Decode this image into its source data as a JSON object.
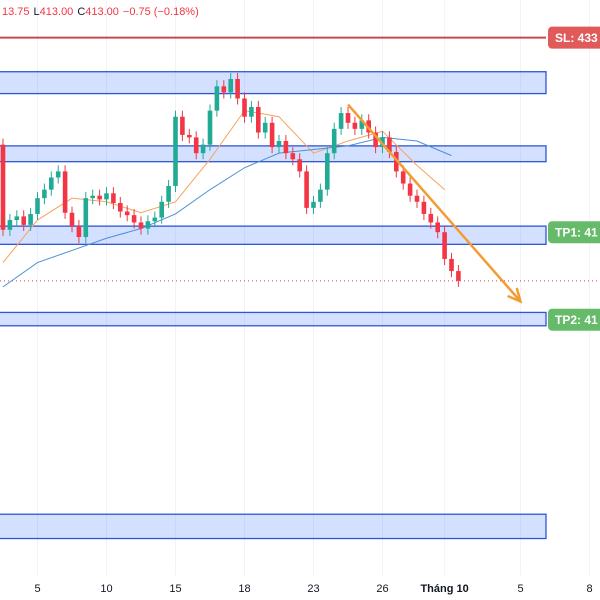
{
  "chart_data": {
    "type": "candlestick",
    "header": [
      {
        "text": "13.75",
        "color": "#f23645"
      },
      {
        "text": "L",
        "color": "#131722"
      },
      {
        "text": "413.00",
        "color": "#f23645"
      },
      {
        "text": "C",
        "color": "#131722"
      },
      {
        "text": "413.00",
        "color": "#f23645"
      },
      {
        "text": "−0.75 (−0.18%)",
        "color": "#f23645"
      }
    ],
    "categories": [
      null,
      null,
      null,
      null,
      null,
      "5",
      null,
      null,
      null,
      null,
      null,
      null,
      null,
      null,
      null,
      "10",
      null,
      null,
      null,
      null,
      null,
      null,
      null,
      null,
      null,
      "15",
      null,
      null,
      null,
      null,
      null,
      null,
      null,
      null,
      null,
      "18",
      null,
      null,
      null,
      null,
      null,
      null,
      null,
      null,
      null,
      "23",
      null,
      null,
      null,
      null,
      null,
      null,
      null,
      null,
      null,
      "26",
      null,
      null,
      null,
      null,
      null,
      null,
      null,
      null,
      "Tháng 10",
      null,
      null,
      null,
      null,
      null,
      null,
      null,
      null,
      null,
      null,
      "5",
      null,
      null,
      null,
      null,
      null,
      null,
      null,
      null,
      null,
      "8"
    ],
    "open": [
      424.2,
      417.2,
      418.0,
      418.3,
      417.6,
      418.5,
      419.8,
      420.5,
      421.5,
      422.0,
      418.6,
      417.5,
      416.6,
      419.8,
      420.0,
      419.7,
      420.2,
      419.4,
      418.7,
      418.4,
      417.8,
      417.3,
      417.9,
      418.2,
      419.5,
      420.8,
      426.5,
      425.0,
      424.8,
      423.5,
      424.2,
      427.0,
      429.0,
      428.5,
      429.6,
      428.0,
      426.5,
      427.3,
      425.2,
      426.0,
      424.0,
      424.5,
      423.5,
      423.0,
      422.0,
      419.0,
      419.5,
      420.5,
      423.5,
      425.5,
      426.8,
      426.0,
      425.5,
      426.2,
      425.2,
      424.0,
      424.8,
      423.6,
      422.0,
      421.0,
      420.0,
      419.5,
      418.5,
      417.8,
      417.0,
      414.8,
      413.8,
      null,
      null,
      null,
      null,
      null,
      null,
      null,
      null,
      null,
      null,
      null,
      null,
      null,
      null,
      null,
      null,
      null,
      null,
      null
    ],
    "high": [
      424.7,
      418.5,
      418.8,
      418.8,
      419.0,
      420.3,
      421.0,
      422.0,
      422.5,
      422.5,
      419.1,
      418.0,
      420.3,
      420.5,
      420.5,
      420.7,
      420.7,
      419.9,
      419.2,
      418.9,
      418.3,
      418.4,
      418.7,
      420.0,
      421.3,
      427.0,
      427.0,
      425.5,
      425.3,
      424.7,
      427.5,
      429.5,
      429.5,
      430.1,
      430.1,
      428.5,
      427.8,
      427.8,
      426.5,
      426.5,
      425.0,
      425.0,
      424.0,
      423.5,
      422.5,
      420.0,
      421.0,
      424.0,
      426.0,
      427.3,
      427.3,
      426.5,
      426.7,
      426.7,
      425.7,
      425.3,
      425.3,
      424.1,
      422.5,
      421.5,
      420.5,
      420.0,
      419.0,
      418.3,
      417.5,
      415.3,
      414.3,
      null,
      null,
      null,
      null,
      null,
      null,
      null,
      null,
      null,
      null,
      null,
      null,
      null,
      null,
      null,
      null,
      null,
      null,
      null
    ],
    "low": [
      416.7,
      416.7,
      417.5,
      417.1,
      417.1,
      418.0,
      419.3,
      420.0,
      421.0,
      418.1,
      417.0,
      416.1,
      416.1,
      419.3,
      419.2,
      419.2,
      418.9,
      418.2,
      417.9,
      417.3,
      416.8,
      416.8,
      417.4,
      417.7,
      419.0,
      420.3,
      424.5,
      424.3,
      423.0,
      423.0,
      423.7,
      426.5,
      428.0,
      428.0,
      427.5,
      426.0,
      426.0,
      424.7,
      424.7,
      423.5,
      423.5,
      423.0,
      422.5,
      421.5,
      418.5,
      418.5,
      419.0,
      420.0,
      423.0,
      425.0,
      425.5,
      425.0,
      425.0,
      424.7,
      423.5,
      423.5,
      423.1,
      421.5,
      420.5,
      419.5,
      419.0,
      418.0,
      417.3,
      416.5,
      414.3,
      413.3,
      412.5,
      null,
      null,
      null,
      null,
      null,
      null,
      null,
      null,
      null,
      null,
      null,
      null,
      null,
      null,
      null,
      null,
      null,
      null,
      null
    ],
    "close": [
      417.2,
      418.0,
      418.3,
      417.6,
      418.5,
      419.8,
      420.5,
      421.5,
      422.0,
      418.6,
      417.5,
      416.6,
      419.8,
      420.0,
      419.7,
      420.2,
      419.4,
      418.7,
      418.4,
      417.8,
      417.3,
      417.9,
      418.2,
      419.5,
      420.8,
      426.5,
      425.0,
      424.8,
      423.5,
      424.2,
      427.0,
      429.0,
      428.5,
      429.6,
      428.0,
      426.5,
      427.3,
      425.2,
      426.0,
      424.0,
      424.5,
      423.5,
      423.0,
      422.0,
      419.0,
      419.5,
      420.5,
      423.5,
      425.5,
      426.8,
      426.0,
      425.5,
      426.2,
      425.2,
      424.0,
      424.8,
      423.6,
      422.0,
      421.0,
      420.0,
      419.5,
      418.5,
      417.8,
      417.0,
      414.8,
      413.8,
      413.0,
      null,
      null,
      null,
      null,
      null,
      null,
      null,
      null,
      null,
      null,
      null,
      null,
      null,
      null,
      null,
      null,
      null,
      null,
      null
    ],
    "up_color": "#22ab94",
    "down_color": "#f23645",
    "lines": [
      {
        "color": "#f7a35c",
        "x": [
          0,
          5,
          10,
          15,
          20,
          25,
          30,
          35,
          40,
          45,
          50,
          55,
          60,
          64
        ],
        "values": [
          414.5,
          418.0,
          419.8,
          419.5,
          418.6,
          419.5,
          423.0,
          427.0,
          426.5,
          423.5,
          424.5,
          425.3,
          422.5,
          420.5
        ]
      },
      {
        "color": "#4a90d9",
        "x": [
          0,
          5,
          10,
          15,
          20,
          25,
          30,
          35,
          40,
          45,
          50,
          55,
          60,
          65
        ],
        "values": [
          412.5,
          414.5,
          415.5,
          416.5,
          417.3,
          418.5,
          420.5,
          422.3,
          423.5,
          423.8,
          424.1,
          424.8,
          424.5,
          423.3
        ]
      }
    ],
    "zones": [
      [
        428.4,
        430.2
      ],
      [
        422.8,
        424.1
      ],
      [
        416.0,
        417.5
      ],
      [
        409.3,
        410.4
      ],
      [
        391.8,
        393.8
      ]
    ],
    "levels": [
      {
        "text": "SL: 433",
        "value": 433,
        "color": "#e05a5a",
        "line": true
      },
      {
        "text": "TP1: 41",
        "value": 417.0,
        "color": "#66bb6a",
        "line": false
      },
      {
        "text": "TP2: 41",
        "value": 409.8,
        "color": "#66bb6a",
        "line": false
      }
    ],
    "last_price": 413.0,
    "arrow": {
      "from": [
        50,
        427.5
      ],
      "to": [
        75,
        411.3
      ],
      "color": "#f39c32"
    },
    "ylim": [
      388.8,
      436.1
    ],
    "grid": true
  }
}
